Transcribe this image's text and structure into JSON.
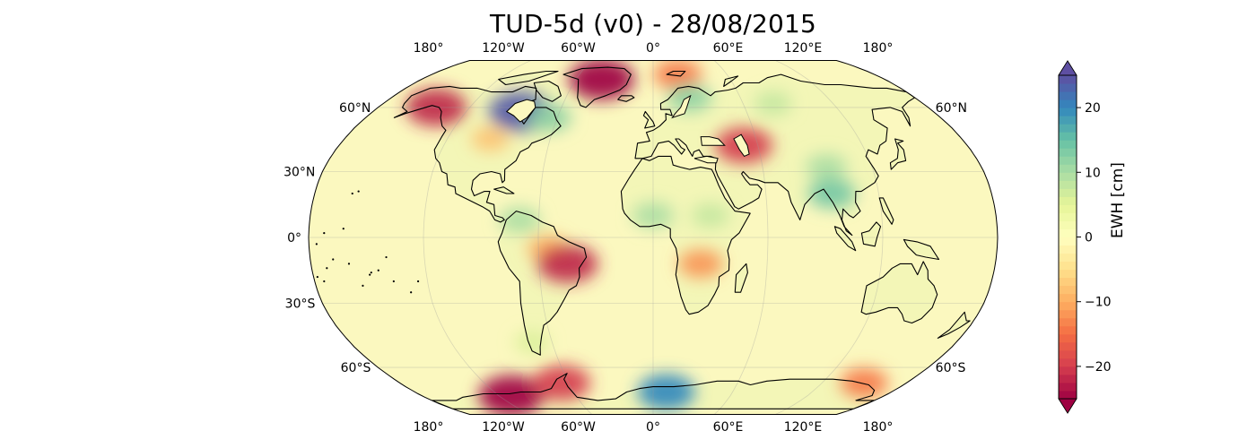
{
  "title": "TUD-5d (v0) - 28/08/2015",
  "map": {
    "projection": "robinson",
    "lon_labels": [
      "180°",
      "120°W",
      "60°W",
      "0°",
      "60°E",
      "120°E",
      "180°"
    ],
    "lat_labels_left": [
      "60°N",
      "30°N",
      "0°",
      "30°S",
      "60°S"
    ],
    "lat_labels_right": [
      "60°N",
      "60°S"
    ],
    "ocean_color": "#fbf8bf",
    "coast_color": "#000000",
    "anomalies": [
      {
        "name": "Greenland",
        "lon": -40,
        "lat": 75,
        "value": -25
      },
      {
        "name": "Alaska",
        "lon": -142,
        "lat": 60,
        "value": -22
      },
      {
        "name": "Hudson Bay",
        "lon": -85,
        "lat": 58,
        "value": 24
      },
      {
        "name": "Labrador",
        "lon": -65,
        "lat": 55,
        "value": 12
      },
      {
        "name": "Great Lakes",
        "lon": -95,
        "lat": 45,
        "value": -8
      },
      {
        "name": "Svalbard",
        "lon": 20,
        "lat": 78,
        "value": -14
      },
      {
        "name": "Scandinavia",
        "lon": 25,
        "lat": 65,
        "value": 12
      },
      {
        "name": "Central Asia",
        "lon": 52,
        "lat": 42,
        "value": -20
      },
      {
        "name": "Russia north",
        "lon": 80,
        "lat": 62,
        "value": 8
      },
      {
        "name": "China",
        "lon": 95,
        "lat": 32,
        "value": 10
      },
      {
        "name": "SE Asia",
        "lon": 95,
        "lat": 20,
        "value": 14
      },
      {
        "name": "West Africa",
        "lon": 0,
        "lat": 10,
        "value": 10
      },
      {
        "name": "East Africa",
        "lon": 30,
        "lat": 10,
        "value": 8
      },
      {
        "name": "Southern Africa",
        "lon": 25,
        "lat": -12,
        "value": -12
      },
      {
        "name": "Amazon",
        "lon": -55,
        "lat": -5,
        "value": -10
      },
      {
        "name": "Brazil",
        "lon": -45,
        "lat": -12,
        "value": -22
      },
      {
        "name": "North South America",
        "lon": -70,
        "lat": 8,
        "value": 10
      },
      {
        "name": "Patagonia",
        "lon": -72,
        "lat": -48,
        "value": 6
      },
      {
        "name": "West Antarctica",
        "lon": -110,
        "lat": -75,
        "value": -25
      },
      {
        "name": "Antarctic Peninsula",
        "lon": -65,
        "lat": -68,
        "value": -20
      },
      {
        "name": "East Antarctica",
        "lon": 10,
        "lat": -73,
        "value": 20
      },
      {
        "name": "Wilkes Land",
        "lon": 150,
        "lat": -68,
        "value": -14
      }
    ]
  },
  "colorbar": {
    "label": "EWH [cm]",
    "min": -25,
    "max": 25,
    "ticks": [
      {
        "value": 20,
        "label": "20"
      },
      {
        "value": 10,
        "label": "10"
      },
      {
        "value": 0,
        "label": "0"
      },
      {
        "value": -10,
        "label": "−10"
      },
      {
        "value": -20,
        "label": "−20"
      }
    ],
    "colors": [
      "#9e0142",
      "#d53e4f",
      "#f46d43",
      "#fdae61",
      "#fee08b",
      "#ffffbf",
      "#e6f598",
      "#abdda4",
      "#66c2a5",
      "#3288bd",
      "#5e4fa2"
    ]
  }
}
